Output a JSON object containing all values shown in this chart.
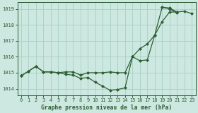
{
  "title": "Graphe pression niveau de la mer (hPa)",
  "background_color": "#cce8e0",
  "grid_color": "#a8cfc4",
  "line_color": "#2d5e35",
  "x_ticks": [
    0,
    1,
    2,
    3,
    4,
    5,
    6,
    7,
    8,
    9,
    10,
    11,
    12,
    13,
    14,
    15,
    16,
    17,
    18,
    19,
    20,
    21,
    22,
    23
  ],
  "y_ticks": [
    1014,
    1015,
    1016,
    1017,
    1018,
    1019
  ],
  "ylim": [
    1013.6,
    1019.4
  ],
  "xlim": [
    -0.5,
    23.5
  ],
  "series1": [
    1014.8,
    1015.1,
    1015.4,
    1015.05,
    1015.05,
    1015.0,
    1015.05,
    1015.05,
    1014.85,
    1015.0,
    1015.0,
    1015.0,
    1015.05,
    1015.0,
    1015.0,
    1016.0,
    1016.5,
    1016.8,
    1017.35,
    1018.2,
    1018.8,
    1018.8,
    null,
    null
  ],
  "series2": [
    1014.8,
    1015.1,
    1015.4,
    1015.05,
    1015.05,
    1015.0,
    1014.9,
    1014.85,
    1014.65,
    1014.7,
    1014.4,
    1014.15,
    1013.9,
    1013.95,
    1014.05,
    1016.0,
    1015.75,
    1015.8,
    1017.35,
    1019.1,
    1019.0,
    1018.75,
    null,
    null
  ],
  "series3": [
    1014.8,
    null,
    null,
    null,
    null,
    null,
    null,
    null,
    null,
    null,
    null,
    null,
    null,
    null,
    null,
    null,
    null,
    null,
    null,
    1019.1,
    1019.05,
    1018.8,
    1018.85,
    1018.7
  ],
  "marker_style": "D",
  "marker_size": 2.5,
  "linewidth": 0.9,
  "xlabel_fontsize": 5.8,
  "tick_fontsize": 5.0,
  "title_font": "monospace"
}
